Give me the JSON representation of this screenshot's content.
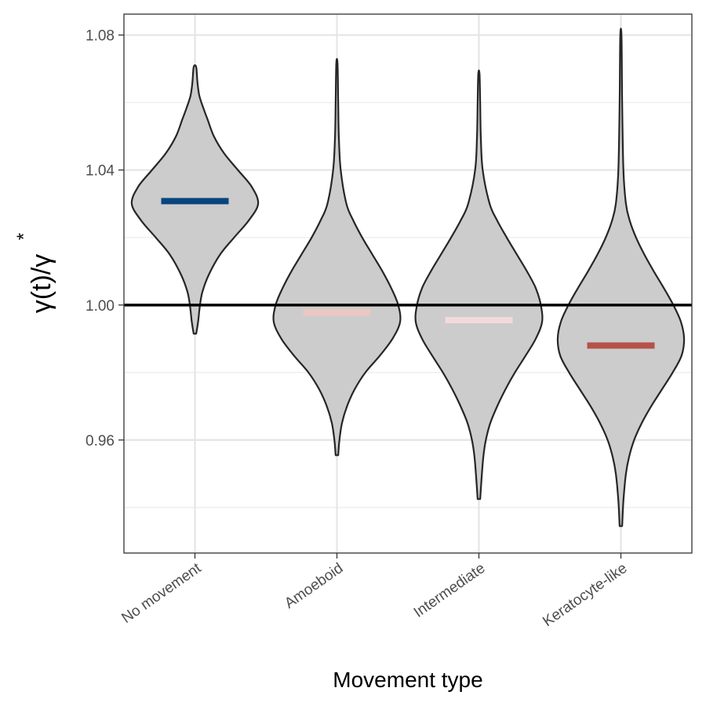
{
  "chart_data": {
    "type": "violin",
    "xlabel": "Movement type",
    "ylabel": "γ(t)/γ",
    "ylabel_superscript": "*",
    "categories": [
      "No movement",
      "Amoeboid",
      "Intermediate",
      "Keratocyte-like"
    ],
    "ylim": [
      0.9265,
      1.0862
    ],
    "yticks": [
      0.96,
      1.0,
      1.04,
      1.08
    ],
    "ytick_labels": [
      "0.96",
      "1.00",
      "1.04",
      "1.08"
    ],
    "reference_line": 1.0,
    "grid": true,
    "series": [
      {
        "category": "No movement",
        "min": 0.9915,
        "max": 1.0705,
        "center_value": 1.0308,
        "center_color": "#08457e",
        "density": [
          [
            0.9915,
            0.02
          ],
          [
            0.995,
            0.05
          ],
          [
            1.0,
            0.08
          ],
          [
            1.004,
            0.12
          ],
          [
            1.009,
            0.22
          ],
          [
            1.015,
            0.4
          ],
          [
            1.02,
            0.62
          ],
          [
            1.025,
            0.85
          ],
          [
            1.03,
            1.0
          ],
          [
            1.035,
            0.9
          ],
          [
            1.04,
            0.68
          ],
          [
            1.045,
            0.46
          ],
          [
            1.05,
            0.3
          ],
          [
            1.055,
            0.2
          ],
          [
            1.058,
            0.14
          ],
          [
            1.062,
            0.07
          ],
          [
            1.066,
            0.04
          ],
          [
            1.0705,
            0.02
          ]
        ]
      },
      {
        "category": "Amoeboid",
        "min": 0.9555,
        "max": 1.0715,
        "center_value": 0.9978,
        "center_color": "#eec6c1",
        "density": [
          [
            0.9555,
            0.02
          ],
          [
            0.96,
            0.04
          ],
          [
            0.965,
            0.08
          ],
          [
            0.97,
            0.16
          ],
          [
            0.975,
            0.28
          ],
          [
            0.98,
            0.45
          ],
          [
            0.985,
            0.68
          ],
          [
            0.99,
            0.88
          ],
          [
            0.995,
            1.0
          ],
          [
            1.0,
            0.97
          ],
          [
            1.005,
            0.86
          ],
          [
            1.01,
            0.72
          ],
          [
            1.015,
            0.56
          ],
          [
            1.02,
            0.4
          ],
          [
            1.025,
            0.26
          ],
          [
            1.03,
            0.15
          ],
          [
            1.04,
            0.06
          ],
          [
            1.05,
            0.03
          ],
          [
            1.06,
            0.02
          ],
          [
            1.0715,
            0.01
          ]
        ]
      },
      {
        "category": "Intermediate",
        "min": 0.9425,
        "max": 1.0685,
        "center_value": 0.9955,
        "center_color": "#f3dada",
        "density": [
          [
            0.9425,
            0.02
          ],
          [
            0.948,
            0.04
          ],
          [
            0.955,
            0.07
          ],
          [
            0.96,
            0.11
          ],
          [
            0.965,
            0.18
          ],
          [
            0.97,
            0.29
          ],
          [
            0.975,
            0.42
          ],
          [
            0.98,
            0.57
          ],
          [
            0.985,
            0.74
          ],
          [
            0.99,
            0.9
          ],
          [
            0.995,
            1.0
          ],
          [
            1.0,
            0.98
          ],
          [
            1.005,
            0.9
          ],
          [
            1.01,
            0.76
          ],
          [
            1.015,
            0.6
          ],
          [
            1.02,
            0.44
          ],
          [
            1.025,
            0.29
          ],
          [
            1.03,
            0.17
          ],
          [
            1.04,
            0.06
          ],
          [
            1.05,
            0.03
          ],
          [
            1.06,
            0.02
          ],
          [
            1.0685,
            0.01
          ]
        ]
      },
      {
        "category": "Keratocyte-like",
        "min": 0.9345,
        "max": 1.0795,
        "center_value": 0.988,
        "center_color": "#b5524a",
        "density": [
          [
            0.9345,
            0.02
          ],
          [
            0.942,
            0.04
          ],
          [
            0.95,
            0.08
          ],
          [
            0.955,
            0.13
          ],
          [
            0.96,
            0.21
          ],
          [
            0.965,
            0.33
          ],
          [
            0.97,
            0.48
          ],
          [
            0.975,
            0.65
          ],
          [
            0.98,
            0.82
          ],
          [
            0.985,
            0.96
          ],
          [
            0.99,
            1.0
          ],
          [
            0.995,
            0.95
          ],
          [
            1.0,
            0.83
          ],
          [
            1.005,
            0.68
          ],
          [
            1.01,
            0.52
          ],
          [
            1.015,
            0.37
          ],
          [
            1.02,
            0.24
          ],
          [
            1.025,
            0.14
          ],
          [
            1.03,
            0.08
          ],
          [
            1.04,
            0.04
          ],
          [
            1.06,
            0.02
          ],
          [
            1.0795,
            0.01
          ]
        ]
      }
    ]
  }
}
